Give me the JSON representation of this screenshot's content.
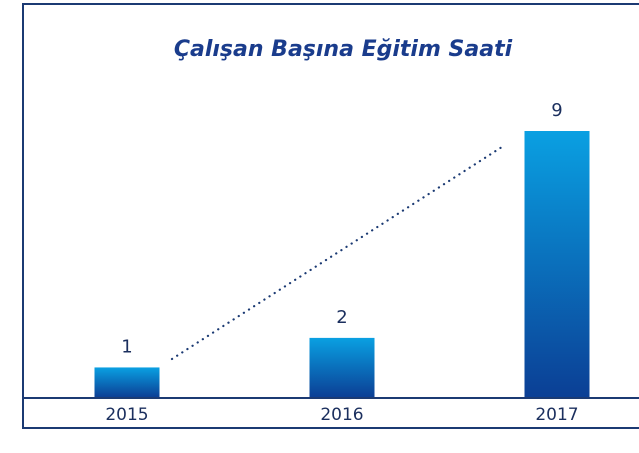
{
  "chart_data": {
    "type": "bar",
    "title": "Çalışan Başına Eğitim Saati",
    "categories": [
      "2015",
      "2016",
      "2017"
    ],
    "values": [
      1,
      2,
      9
    ],
    "color": "#0b4a9c"
  }
}
